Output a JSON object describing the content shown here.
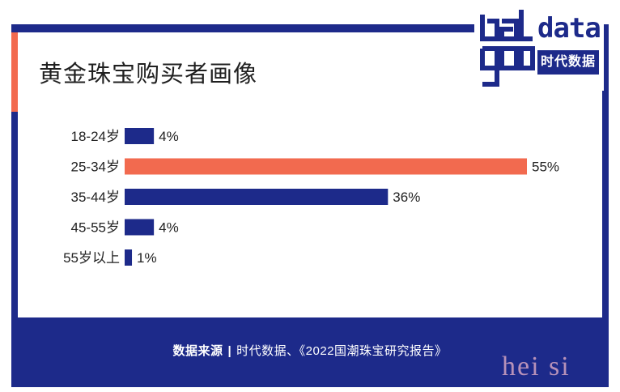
{
  "header": {
    "title": "黄金珠宝购买者画像",
    "logo_text": "data",
    "logo_text_2": "good",
    "logo_tag": "时代数据"
  },
  "footer": {
    "source_label": "数据来源",
    "separator": "|",
    "source_text": "时代数据、《2022国潮珠宝研究报告》"
  },
  "watermark": "hei si",
  "colors": {
    "primary": "#1d2a8a",
    "highlight": "#f26a4f"
  },
  "chart_data": {
    "type": "bar",
    "orientation": "horizontal",
    "categories": [
      "18-24岁",
      "25-34岁",
      "35-44岁",
      "45-55岁",
      "55岁以上"
    ],
    "values": [
      4,
      55,
      36,
      4,
      1
    ],
    "value_labels": [
      "4%",
      "55%",
      "36%",
      "4%",
      "1%"
    ],
    "unit": "%",
    "highlight_index": 1,
    "xlim": [
      0,
      55
    ],
    "grid": false,
    "legend": "none"
  }
}
